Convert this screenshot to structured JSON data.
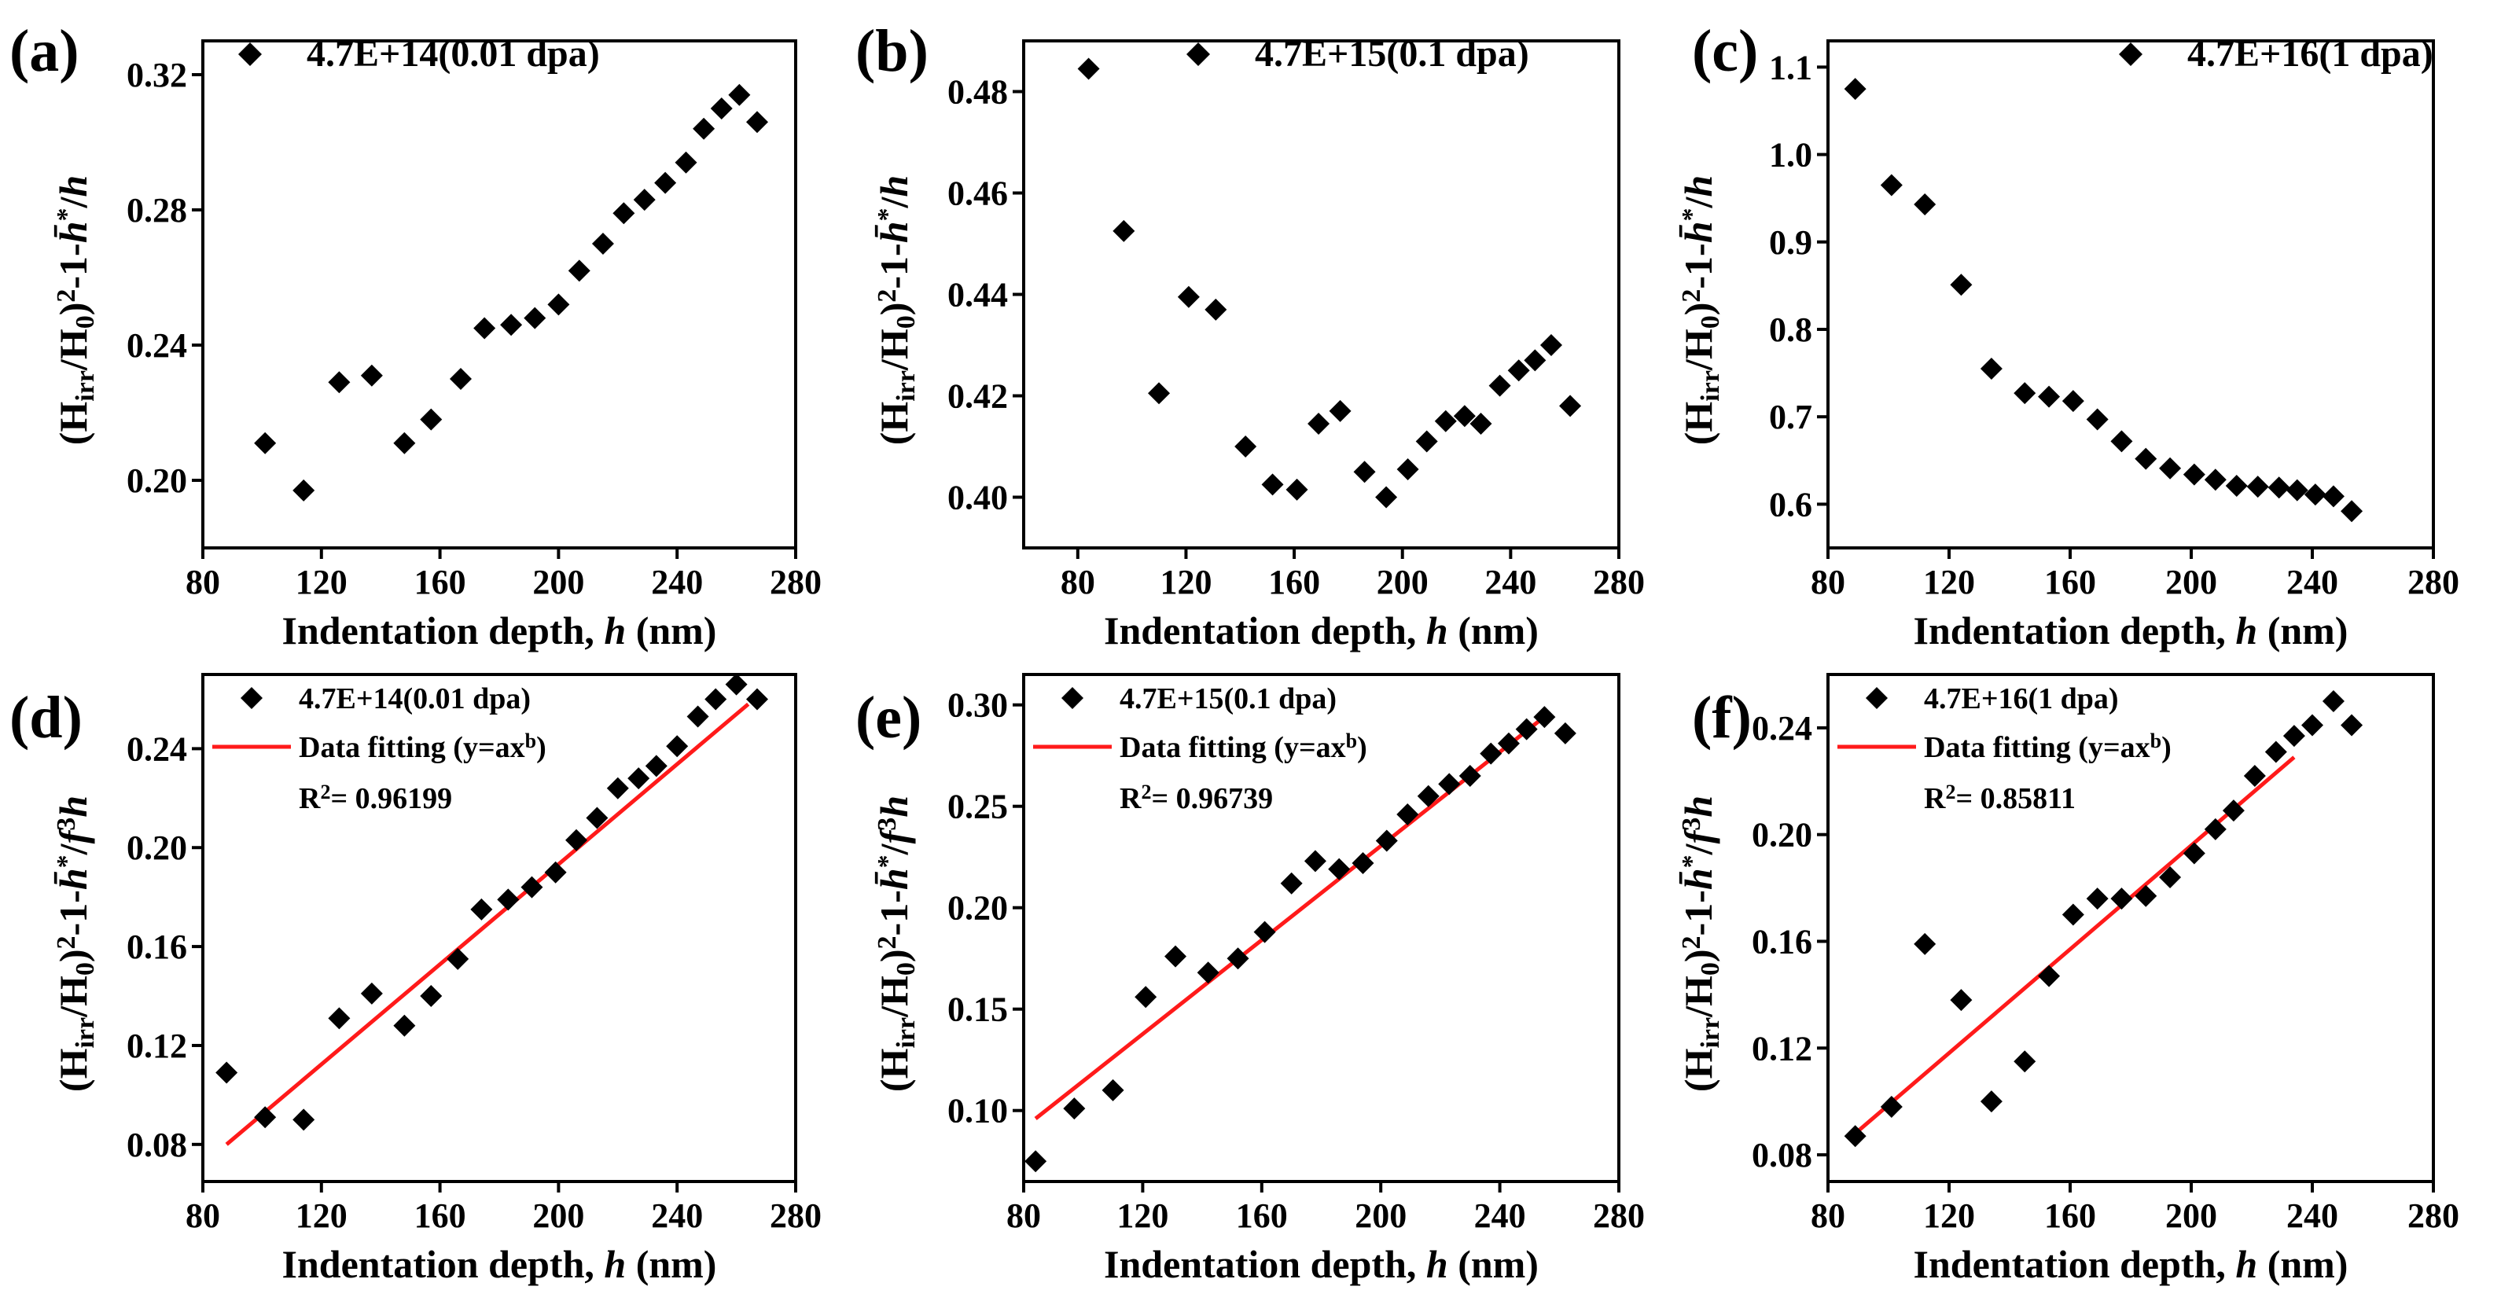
{
  "chart_data": [
    {
      "id": "a",
      "type": "scatter",
      "panel_label": "(a)",
      "xlabel": "Indentation depth, ",
      "xlabel_var": "h",
      "xlabel_unit": " (nm)",
      "ylabel": "(Hirr/H0)²-1-h̄*/h",
      "xlim": [
        80,
        280
      ],
      "ylim": [
        0.18,
        0.33
      ],
      "xticks": [
        80,
        120,
        160,
        200,
        240,
        280
      ],
      "xtick_labels": [
        "80",
        "120",
        "160",
        "200",
        "240",
        "280"
      ],
      "yticks": [
        0.2,
        0.24,
        0.28,
        0.32
      ],
      "ytick_labels": [
        "0.20",
        "0.24",
        "0.28",
        "0.32"
      ],
      "legend": [
        {
          "kind": "marker",
          "label": "4.7E+14(0.01 dpa)"
        }
      ],
      "series": [
        {
          "name": "4.7E+14(0.01 dpa)",
          "x": [
            101,
            114,
            126,
            137,
            148,
            157,
            167,
            175,
            184,
            192,
            200,
            207,
            215,
            222,
            229,
            236,
            243,
            249,
            255,
            261,
            267
          ],
          "y": [
            0.211,
            0.197,
            0.229,
            0.231,
            0.211,
            0.218,
            0.23,
            0.245,
            0.246,
            0.248,
            0.252,
            0.262,
            0.27,
            0.279,
            0.283,
            0.288,
            0.294,
            0.304,
            0.31,
            0.314,
            0.306
          ]
        }
      ]
    },
    {
      "id": "b",
      "type": "scatter",
      "panel_label": "(b)",
      "xlabel": "Indentation depth, ",
      "xlabel_var": "h",
      "xlabel_unit": " (nm)",
      "ylabel": "(Hirr/H0)²-1-h̄*/h",
      "xlim": [
        60,
        280
      ],
      "ylim": [
        0.39,
        0.49
      ],
      "xticks": [
        80,
        120,
        160,
        200,
        240,
        280
      ],
      "xtick_labels": [
        "80",
        "120",
        "160",
        "200",
        "240",
        "280"
      ],
      "yticks": [
        0.4,
        0.42,
        0.44,
        0.46,
        0.48
      ],
      "ytick_labels": [
        "0.40",
        "0.42",
        "0.44",
        "0.46",
        "0.48"
      ],
      "legend": [
        {
          "kind": "marker",
          "label": "4.7E+15(0.1 dpa)"
        }
      ],
      "series": [
        {
          "name": "4.7E+15(0.1 dpa)",
          "x": [
            84,
            97,
            110,
            121,
            131,
            142,
            152,
            161,
            169,
            177,
            186,
            194,
            202,
            209,
            216,
            223,
            229,
            236,
            243,
            249,
            255,
            262
          ],
          "y": [
            0.4845,
            0.4525,
            0.4205,
            0.4395,
            0.437,
            0.41,
            0.4025,
            0.4015,
            0.4145,
            0.417,
            0.405,
            0.4,
            0.4055,
            0.411,
            0.415,
            0.416,
            0.4145,
            0.422,
            0.425,
            0.427,
            0.43,
            0.418
          ]
        }
      ]
    },
    {
      "id": "c",
      "type": "scatter",
      "panel_label": "(c)",
      "xlabel": "Indentation depth, ",
      "xlabel_var": "h",
      "xlabel_unit": " (nm)",
      "ylabel": "(Hirr/H0)²-1-h̄*/h",
      "xlim": [
        80,
        280
      ],
      "ylim": [
        0.55,
        1.13
      ],
      "xticks": [
        80,
        120,
        160,
        200,
        240,
        280
      ],
      "xtick_labels": [
        "80",
        "120",
        "160",
        "200",
        "240",
        "280"
      ],
      "yticks": [
        0.6,
        0.7,
        0.8,
        0.9,
        1.0,
        1.1
      ],
      "ytick_labels": [
        "0.6",
        "0.7",
        "0.8",
        "0.9",
        "1.0",
        "1.1"
      ],
      "legend": [
        {
          "kind": "marker",
          "label": "4.7E+16(1 dpa)"
        }
      ],
      "series": [
        {
          "name": "4.7E+16(1 dpa)",
          "x": [
            89,
            101,
            112,
            124,
            134,
            145,
            153,
            161,
            169,
            177,
            185,
            193,
            201,
            208,
            215,
            222,
            229,
            235,
            241,
            247,
            253
          ],
          "y": [
            1.075,
            0.965,
            0.943,
            0.851,
            0.755,
            0.727,
            0.723,
            0.718,
            0.697,
            0.672,
            0.652,
            0.641,
            0.634,
            0.628,
            0.621,
            0.62,
            0.619,
            0.616,
            0.611,
            0.609,
            0.592
          ]
        }
      ]
    },
    {
      "id": "d",
      "type": "scatter",
      "panel_label": "(d)",
      "xlabel": "Indentation depth, ",
      "xlabel_var": "h",
      "xlabel_unit": " (nm)",
      "ylabel": "(Hirr/H0)²-1-h̄*/f³h",
      "xlim": [
        80,
        280
      ],
      "ylim": [
        0.065,
        0.27
      ],
      "xticks": [
        80,
        120,
        160,
        200,
        240,
        280
      ],
      "xtick_labels": [
        "80",
        "120",
        "160",
        "200",
        "240",
        "280"
      ],
      "yticks": [
        0.08,
        0.12,
        0.16,
        0.2,
        0.24
      ],
      "ytick_labels": [
        "0.08",
        "0.12",
        "0.16",
        "0.20",
        "0.24"
      ],
      "legend": [
        {
          "kind": "marker",
          "label": "4.7E+14(0.01 dpa)"
        },
        {
          "kind": "line",
          "label": "Data fitting (y=ax",
          "sup": "b",
          "tail": ")"
        }
      ],
      "r2_label": "R",
      "r2_sup": "2",
      "r2_value": "= 0.96199",
      "series": [
        {
          "name": "4.7E+14(0.01 dpa)",
          "x": [
            88,
            101,
            114,
            126,
            137,
            148,
            157,
            166,
            174,
            183,
            191,
            199,
            206,
            213,
            220,
            227,
            233,
            240,
            247,
            253,
            260,
            267
          ],
          "y": [
            0.109,
            0.091,
            0.09,
            0.131,
            0.141,
            0.128,
            0.14,
            0.155,
            0.175,
            0.179,
            0.184,
            0.19,
            0.203,
            0.212,
            0.224,
            0.228,
            0.233,
            0.241,
            0.253,
            0.26,
            0.266,
            0.26
          ]
        },
        {
          "name": "Data fitting (y=ax^b)",
          "fit": true,
          "x": [
            88,
            264
          ],
          "y": [
            0.08,
            0.258
          ]
        }
      ]
    },
    {
      "id": "e",
      "type": "scatter",
      "panel_label": "(e)",
      "xlabel": "Indentation depth, ",
      "xlabel_var": "h",
      "xlabel_unit": " (nm)",
      "ylabel": "(Hirr/H0)²-1-h̄*/f³h",
      "xlim": [
        80,
        280
      ],
      "ylim": [
        0.065,
        0.315
      ],
      "xticks": [
        80,
        120,
        160,
        200,
        240,
        280
      ],
      "xtick_labels": [
        "80",
        "120",
        "160",
        "200",
        "240",
        "280"
      ],
      "yticks": [
        0.1,
        0.15,
        0.2,
        0.25,
        0.3
      ],
      "ytick_labels": [
        "0.10",
        "0.15",
        "0.20",
        "0.25",
        "0.30"
      ],
      "legend": [
        {
          "kind": "marker",
          "label": "4.7E+15(0.1 dpa)"
        },
        {
          "kind": "line",
          "label": "Data fitting (y=ax",
          "sup": "b",
          "tail": ")"
        }
      ],
      "r2_label": "R",
      "r2_sup": "2",
      "r2_value": "= 0.96739",
      "series": [
        {
          "name": "4.7E+15(0.1 dpa)",
          "x": [
            84,
            97,
            110,
            121,
            131,
            142,
            152,
            161,
            170,
            178,
            186,
            194,
            202,
            209,
            216,
            223,
            230,
            237,
            243,
            249,
            255,
            262
          ],
          "y": [
            0.075,
            0.101,
            0.11,
            0.156,
            0.176,
            0.168,
            0.175,
            0.188,
            0.212,
            0.223,
            0.219,
            0.222,
            0.233,
            0.246,
            0.255,
            0.261,
            0.265,
            0.276,
            0.281,
            0.288,
            0.294,
            0.286
          ]
        },
        {
          "name": "Data fitting (y=ax^b)",
          "fit": true,
          "x": [
            84,
            254
          ],
          "y": [
            0.096,
            0.293
          ]
        }
      ]
    },
    {
      "id": "f",
      "type": "scatter",
      "panel_label": "(f)",
      "xlabel": "Indentation depth, ",
      "xlabel_var": "h",
      "xlabel_unit": " (nm)",
      "ylabel": "(Hirr/H0)²-1-h̄*/f³h",
      "xlim": [
        80,
        280
      ],
      "ylim": [
        0.07,
        0.26
      ],
      "xticks": [
        80,
        120,
        160,
        200,
        240,
        280
      ],
      "xtick_labels": [
        "80",
        "120",
        "160",
        "200",
        "240",
        "280"
      ],
      "yticks": [
        0.08,
        0.12,
        0.16,
        0.2,
        0.24
      ],
      "ytick_labels": [
        "0.08",
        "0.12",
        "0.16",
        "0.20",
        "0.24"
      ],
      "legend": [
        {
          "kind": "marker",
          "label": "4.7E+16(1 dpa)"
        },
        {
          "kind": "line",
          "label": "Data fitting (y=ax",
          "sup": "b",
          "tail": ")"
        }
      ],
      "r2_label": "R",
      "r2_sup": "2",
      "r2_value": "= 0.85811",
      "series": [
        {
          "name": "4.7E+16(1 dpa)",
          "x": [
            89,
            101,
            112,
            124,
            134,
            145,
            153,
            161,
            169,
            177,
            185,
            193,
            201,
            208,
            214,
            221,
            228,
            234,
            240,
            247,
            253
          ],
          "y": [
            0.087,
            0.098,
            0.159,
            0.138,
            0.1,
            0.115,
            0.147,
            0.17,
            0.176,
            0.176,
            0.177,
            0.184,
            0.193,
            0.202,
            0.209,
            0.222,
            0.231,
            0.237,
            0.241,
            0.25,
            0.241
          ]
        },
        {
          "name": "Data fitting (y=ax^b)",
          "fit": true,
          "x": [
            89,
            234
          ],
          "y": [
            0.088,
            0.229
          ]
        }
      ]
    }
  ]
}
